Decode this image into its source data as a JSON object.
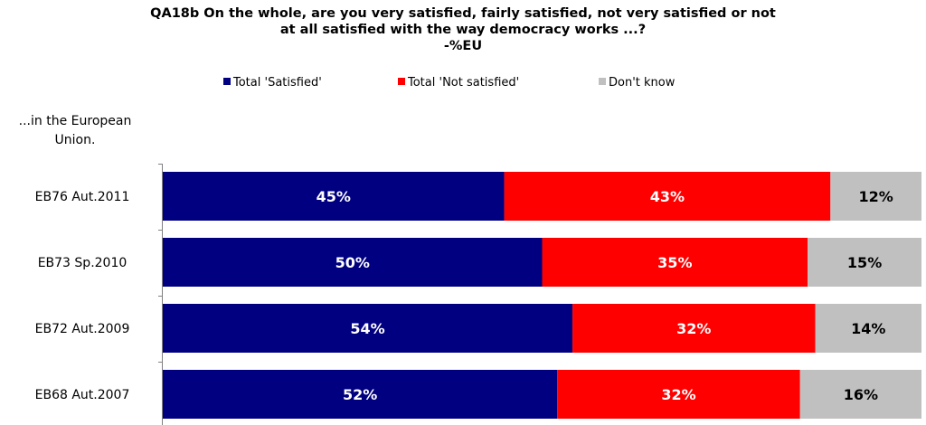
{
  "title": {
    "line1": "QA18b On the whole, are you very satisfied, fairly satisfied, not very satisfied or not",
    "line2": "at all satisfied with the way democracy works ...?",
    "line3": "-%EU"
  },
  "subtitle": {
    "line1": "...in the European",
    "line2": "Union."
  },
  "legend": [
    {
      "label": "Total 'Satisfied'",
      "color": "#000080"
    },
    {
      "label": "Total 'Not satisfied'",
      "color": "#ff0000"
    },
    {
      "label": "Don't know",
      "color": "#c0c0c0"
    }
  ],
  "chart_data": {
    "type": "bar",
    "orientation": "horizontal",
    "stacked": true,
    "percent_stacked": true,
    "categories": [
      "EB76 Aut.2011",
      "EB73 Sp.2010",
      "EB72 Aut.2009",
      "EB68 Aut.2007"
    ],
    "series": [
      {
        "name": "Total 'Satisfied'",
        "values": [
          45,
          50,
          54,
          52
        ],
        "color": "#000080"
      },
      {
        "name": "Total 'Not satisfied'",
        "values": [
          43,
          35,
          32,
          32
        ],
        "color": "#ff0000"
      },
      {
        "name": "Don't know",
        "values": [
          12,
          15,
          14,
          16
        ],
        "color": "#c0c0c0"
      }
    ],
    "data_labels": true,
    "label_format": "{v}%",
    "label_colors": [
      "#ffffff",
      "#ffffff",
      "#000000"
    ],
    "legend_position": "top",
    "grid": false
  }
}
